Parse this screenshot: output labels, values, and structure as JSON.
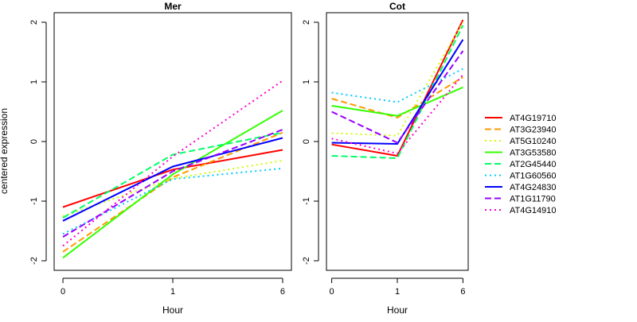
{
  "chart_data": [
    {
      "type": "line",
      "title": "Mer",
      "xlabel": "Hour",
      "ylabel": "centered expression",
      "categories": [
        "0",
        "1",
        "6"
      ],
      "ylim": [
        -2,
        2
      ],
      "yticks": [
        "-2",
        "-1",
        "0",
        "1",
        "2"
      ],
      "series": [
        {
          "name": "AT4G19710",
          "color": "#FF0000",
          "dash": "solid",
          "values": [
            -1.1,
            -0.47,
            -0.14
          ]
        },
        {
          "name": "AT3G23940",
          "color": "#FF9900",
          "dash": "dashed",
          "values": [
            -1.85,
            -0.6,
            0.15
          ]
        },
        {
          "name": "AT5G10240",
          "color": "#CCFF00",
          "dash": "dotted",
          "values": [
            -1.25,
            -0.62,
            -0.32
          ]
        },
        {
          "name": "AT3G53580",
          "color": "#33FF00",
          "dash": "solid",
          "values": [
            -1.95,
            -0.55,
            0.52
          ]
        },
        {
          "name": "AT2G45440",
          "color": "#00FF66",
          "dash": "dashed",
          "values": [
            -1.28,
            -0.22,
            0.15
          ]
        },
        {
          "name": "AT1G60560",
          "color": "#00CCFF",
          "dash": "dotted",
          "values": [
            -1.55,
            -0.63,
            -0.45
          ]
        },
        {
          "name": "AT4G24830",
          "color": "#0000FF",
          "dash": "solid",
          "values": [
            -1.33,
            -0.42,
            0.06
          ]
        },
        {
          "name": "AT1G11790",
          "color": "#9900FF",
          "dash": "dashed",
          "values": [
            -1.6,
            -0.5,
            0.2
          ]
        },
        {
          "name": "AT4G14910",
          "color": "#FF00CC",
          "dash": "dotted",
          "values": [
            -1.75,
            -0.25,
            1.02
          ]
        }
      ]
    },
    {
      "type": "line",
      "title": "Cot",
      "xlabel": "Hour",
      "ylabel": "",
      "categories": [
        "0",
        "1",
        "6"
      ],
      "ylim": [
        -2,
        2
      ],
      "yticks": [
        "-2",
        "-1",
        "0",
        "1",
        "2"
      ],
      "series": [
        {
          "name": "AT4G19710",
          "color": "#FF0000",
          "dash": "solid",
          "values": [
            -0.05,
            -0.24,
            2.04
          ]
        },
        {
          "name": "AT3G23940",
          "color": "#FF9900",
          "dash": "dashed",
          "values": [
            0.72,
            0.4,
            1.08
          ]
        },
        {
          "name": "AT5G10240",
          "color": "#CCFF00",
          "dash": "dotted",
          "values": [
            0.14,
            0.1,
            2.0
          ]
        },
        {
          "name": "AT3G53580",
          "color": "#33FF00",
          "dash": "solid",
          "values": [
            0.6,
            0.43,
            0.91
          ]
        },
        {
          "name": "AT2G45440",
          "color": "#00FF66",
          "dash": "dashed",
          "values": [
            -0.24,
            -0.28,
            1.95
          ]
        },
        {
          "name": "AT1G60560",
          "color": "#00CCFF",
          "dash": "dotted",
          "values": [
            0.82,
            0.66,
            1.22
          ]
        },
        {
          "name": "AT4G24830",
          "color": "#0000FF",
          "dash": "solid",
          "values": [
            -0.02,
            -0.04,
            1.71
          ]
        },
        {
          "name": "AT1G11790",
          "color": "#9900FF",
          "dash": "dashed",
          "values": [
            0.5,
            -0.02,
            1.52
          ]
        },
        {
          "name": "AT4G14910",
          "color": "#FF00CC",
          "dash": "dotted",
          "values": [
            0.05,
            -0.2,
            1.12
          ]
        }
      ]
    }
  ],
  "legend": {
    "placement": "right",
    "entries": [
      "AT4G19710",
      "AT3G23940",
      "AT5G10240",
      "AT3G53580",
      "AT2G45440",
      "AT1G60560",
      "AT4G24830",
      "AT1G11790",
      "AT4G14910"
    ]
  }
}
